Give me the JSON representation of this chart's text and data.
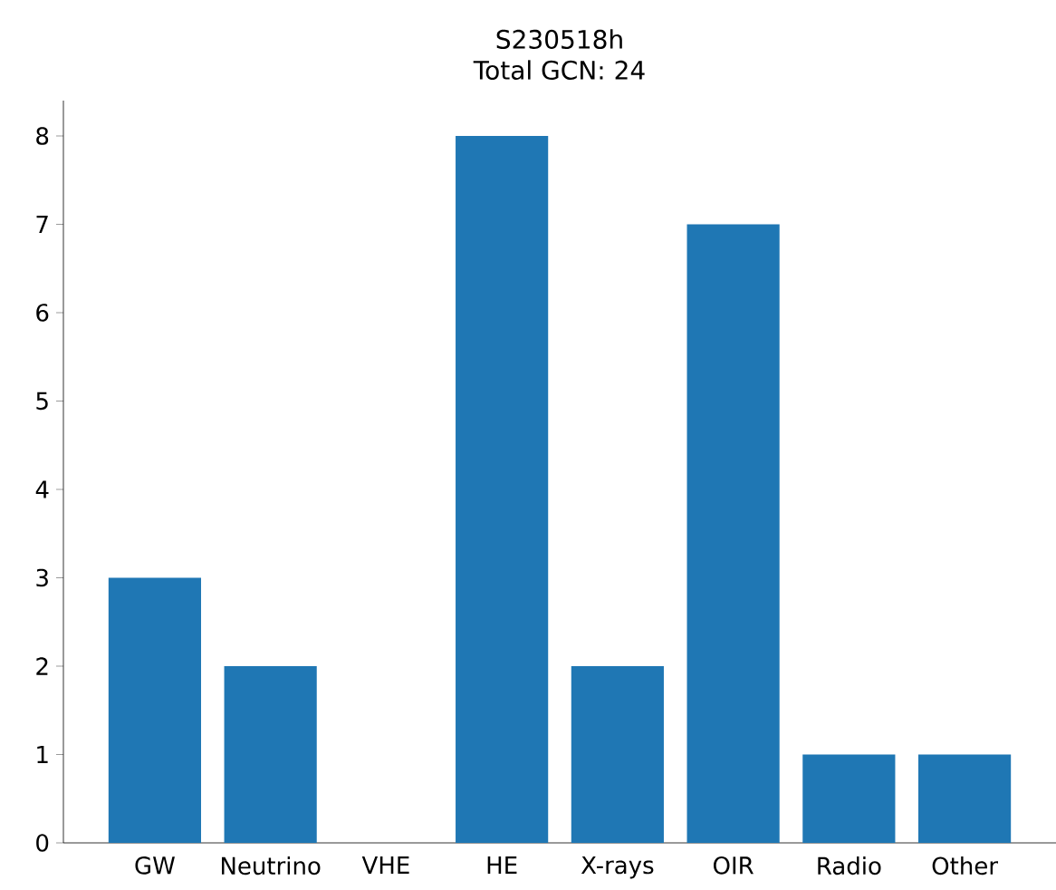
{
  "chart_data": {
    "type": "bar",
    "title": "S230518h",
    "subtitle": "Total GCN: 24",
    "categories": [
      "GW",
      "Neutrino",
      "VHE",
      "HE",
      "X-rays",
      "OIR",
      "Radio",
      "Other"
    ],
    "values": [
      3,
      2,
      0,
      8,
      2,
      7,
      1,
      1
    ],
    "color": "#1f77b4",
    "ylim": [
      0,
      8.4
    ],
    "yticks": [
      0,
      1,
      2,
      3,
      4,
      5,
      6,
      7,
      8
    ]
  }
}
